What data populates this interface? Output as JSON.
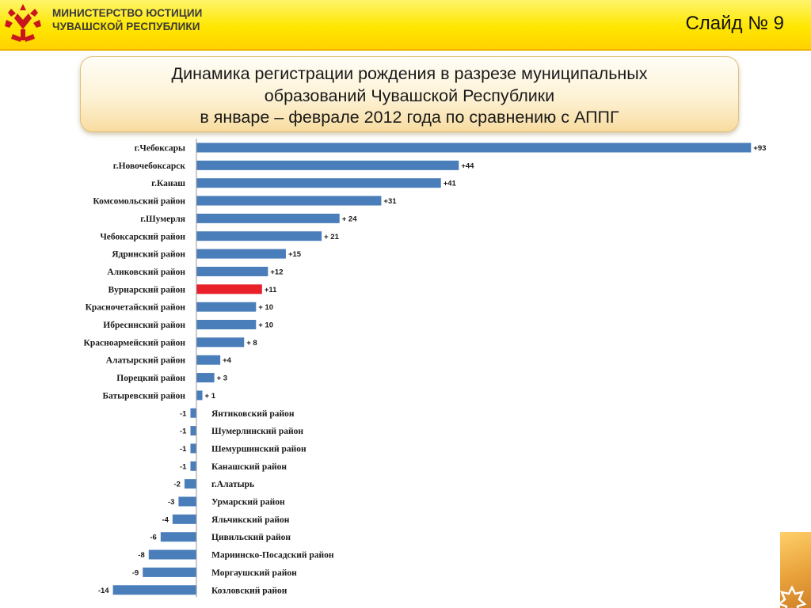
{
  "header": {
    "ministry_line1": "МИНИСТЕРСТВО ЮСТИЦИИ",
    "ministry_line2": "ЧУВАШСКОЙ РЕСПУБЛИКИ",
    "slide_label": "Слайд № 9"
  },
  "title": {
    "line1": "Динамика регистрации рождения в разрезе муниципальных",
    "line2": "образований Чувашской Республики",
    "line3": "в январе – феврале 2012 года по сравнению с АППГ"
  },
  "colors": {
    "bar": "#4a7ebb",
    "highlight_bar": "#e8202a",
    "header_yellow": "#ffe600",
    "ornament": "#c8161d"
  },
  "icons": [
    "chuvash-emblem-icon",
    "ornament-star-icon"
  ],
  "chart_data": {
    "type": "bar",
    "orientation": "horizontal",
    "categories": [
      "г.Чебоксары",
      "г.Новочебоксарск",
      "г.Канаш",
      "Комсомольский район",
      "г.Шумерля",
      "Чебоксарский район",
      "Ядринский район",
      "Аликовский район",
      "Вурнарский район",
      "Красночетайский район",
      "Ибресинский район",
      "Красноармейский район",
      "Алатырский район",
      "Порецкий район",
      "Батыревский район",
      "Янтиковский район",
      "Шумерлинский район",
      "Шемуршинский район",
      "Канашский район",
      "г.Алатырь",
      "Урмарский район",
      "Яльчикский район",
      "Цивильский район",
      "Мариинско-Посадский район",
      "Моргаушский район",
      "Козловский район"
    ],
    "values": [
      93,
      44,
      41,
      31,
      24,
      21,
      15,
      12,
      11,
      10,
      10,
      8,
      4,
      3,
      1,
      -1,
      -1,
      -1,
      -1,
      -2,
      -3,
      -4,
      -6,
      -8,
      -9,
      -14
    ],
    "labels": [
      "+93",
      "+44",
      "+41",
      "+31",
      "+ 24",
      "+ 21",
      "+15",
      "+12",
      "+11",
      "+ 10",
      "+ 10",
      "+ 8",
      "+4",
      "+ 3",
      "+ 1",
      "-1",
      "-1",
      "-1",
      "-1",
      "-2",
      "-3",
      "-4",
      "-6",
      "-8",
      "-9",
      "-14"
    ],
    "highlight": "Вурнарский район",
    "xlim": [
      -14,
      93
    ],
    "grid": false,
    "legend": "none"
  }
}
